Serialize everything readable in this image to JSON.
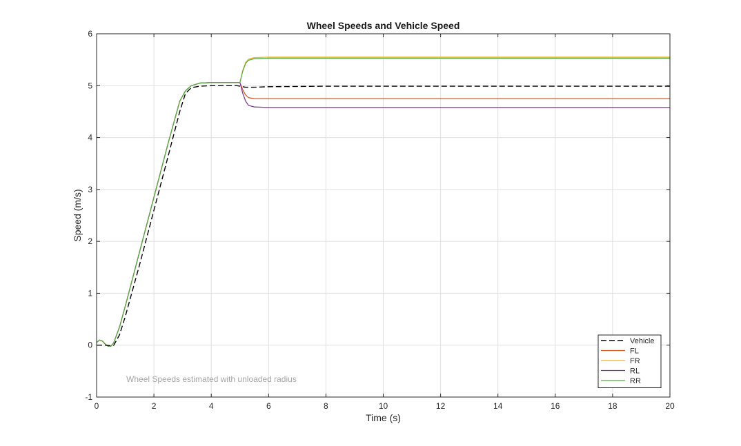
{
  "chart_data": {
    "type": "line",
    "title": "Wheel Speeds and Vehicle Speed",
    "xlabel": "Time (s)",
    "ylabel": "Speed (m/s)",
    "xlim": [
      0,
      20
    ],
    "ylim": [
      -1,
      6
    ],
    "xticks": [
      "0",
      "2",
      "4",
      "6",
      "8",
      "10",
      "12",
      "14",
      "16",
      "18",
      "20"
    ],
    "yticks": [
      "-1",
      "0",
      "1",
      "2",
      "3",
      "4",
      "5",
      "6"
    ],
    "grid": true,
    "legend_position": "bottom-right",
    "annotation": "Wheel Speeds estimated with unloaded radius",
    "series": [
      {
        "name": "Vehicle",
        "color": "#000000",
        "dash": true,
        "x": [
          0,
          0.3,
          0.5,
          0.6,
          0.8,
          1.0,
          1.5,
          2.0,
          2.5,
          2.9,
          3.1,
          3.3,
          3.6,
          4.0,
          4.5,
          4.9,
          5.2,
          5.5,
          6.0,
          8.0,
          12.0,
          16.0,
          20.0
        ],
        "y": [
          0,
          0,
          -0.01,
          0.0,
          0.2,
          0.55,
          1.55,
          2.6,
          3.65,
          4.5,
          4.85,
          4.96,
          4.99,
          5.0,
          5.0,
          5.0,
          4.97,
          4.97,
          4.98,
          4.99,
          4.99,
          4.99,
          4.99
        ]
      },
      {
        "name": "FL",
        "color": "#d95319",
        "x": [
          0,
          0.1,
          0.2,
          0.3,
          0.4,
          0.5,
          0.6,
          0.8,
          1.0,
          1.5,
          2.0,
          2.5,
          2.9,
          3.1,
          3.3,
          3.6,
          4.0,
          4.5,
          5.0,
          5.1,
          5.2,
          5.3,
          5.5,
          6.0,
          8.0,
          12.0,
          16.0,
          20.0
        ],
        "y": [
          0.05,
          0.1,
          0.08,
          0.02,
          -0.02,
          -0.02,
          0.05,
          0.35,
          0.75,
          1.8,
          2.85,
          3.9,
          4.7,
          4.9,
          5.0,
          5.05,
          5.06,
          5.06,
          5.06,
          4.92,
          4.82,
          4.77,
          4.75,
          4.75,
          4.75,
          4.75,
          4.75,
          4.75
        ]
      },
      {
        "name": "FR",
        "color": "#edb120",
        "x": [
          0,
          0.1,
          0.2,
          0.3,
          0.4,
          0.5,
          0.6,
          0.8,
          1.0,
          1.5,
          2.0,
          2.5,
          2.9,
          3.1,
          3.3,
          3.6,
          4.0,
          4.5,
          5.0,
          5.1,
          5.2,
          5.3,
          5.5,
          6.0,
          8.0,
          12.0,
          16.0,
          20.0
        ],
        "y": [
          0.05,
          0.1,
          0.08,
          0.02,
          -0.02,
          -0.02,
          0.05,
          0.35,
          0.75,
          1.8,
          2.85,
          3.9,
          4.7,
          4.9,
          5.0,
          5.05,
          5.06,
          5.06,
          5.06,
          5.3,
          5.45,
          5.51,
          5.54,
          5.55,
          5.55,
          5.55,
          5.55,
          5.55
        ]
      },
      {
        "name": "RL",
        "color": "#7e2f8e",
        "x": [
          0,
          0.1,
          0.2,
          0.3,
          0.4,
          0.5,
          0.6,
          0.8,
          1.0,
          1.5,
          2.0,
          2.5,
          2.9,
          3.1,
          3.3,
          3.6,
          4.0,
          4.5,
          5.0,
          5.1,
          5.2,
          5.3,
          5.5,
          6.0,
          8.0,
          12.0,
          16.0,
          20.0
        ],
        "y": [
          0.05,
          0.1,
          0.08,
          0.02,
          -0.02,
          -0.02,
          0.05,
          0.35,
          0.75,
          1.8,
          2.85,
          3.9,
          4.7,
          4.9,
          5.0,
          5.05,
          5.06,
          5.06,
          5.06,
          4.85,
          4.7,
          4.62,
          4.59,
          4.58,
          4.58,
          4.58,
          4.58,
          4.58
        ]
      },
      {
        "name": "RR",
        "color": "#4fad3f",
        "x": [
          0,
          0.1,
          0.2,
          0.3,
          0.4,
          0.5,
          0.6,
          0.8,
          1.0,
          1.5,
          2.0,
          2.5,
          2.9,
          3.1,
          3.3,
          3.6,
          4.0,
          4.5,
          5.0,
          5.1,
          5.2,
          5.3,
          5.5,
          6.0,
          8.0,
          12.0,
          16.0,
          20.0
        ],
        "y": [
          0.05,
          0.1,
          0.08,
          0.02,
          -0.02,
          -0.02,
          0.05,
          0.35,
          0.75,
          1.8,
          2.85,
          3.9,
          4.7,
          4.9,
          5.0,
          5.05,
          5.06,
          5.06,
          5.06,
          5.28,
          5.43,
          5.49,
          5.52,
          5.53,
          5.53,
          5.53,
          5.53,
          5.53
        ]
      }
    ]
  }
}
